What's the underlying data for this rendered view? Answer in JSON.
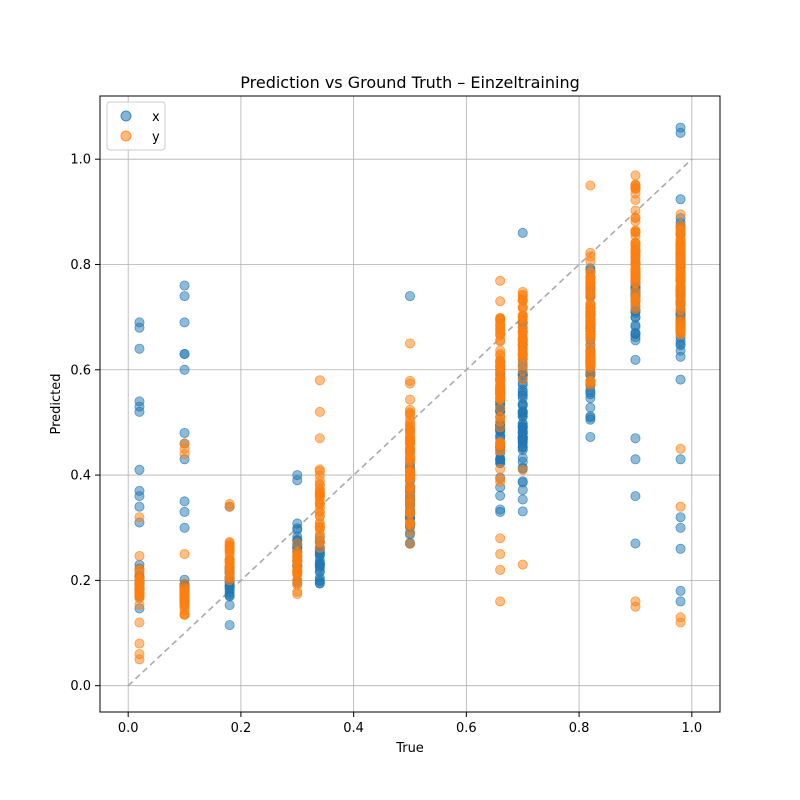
{
  "chart_data": {
    "type": "scatter",
    "title": "Prediction vs Ground Truth – Einzeltraining",
    "xlabel": "True",
    "ylabel": "Predicted",
    "xlim": [
      -0.05,
      1.05
    ],
    "ylim": [
      -0.05,
      1.12
    ],
    "xticks": [
      "0.0",
      "0.2",
      "0.4",
      "0.6",
      "0.8",
      "1.0"
    ],
    "yticks": [
      "0.0",
      "0.2",
      "0.4",
      "0.6",
      "0.8",
      "1.0"
    ],
    "grid": true,
    "legend_position": "top-left",
    "reference_line": {
      "style": "dashed",
      "color": "#aaaaaa",
      "from": [
        0,
        0
      ],
      "to": [
        1,
        1
      ]
    },
    "series": [
      {
        "name": "x",
        "color": "#1f77b4",
        "clusters": [
          {
            "x": 0.02,
            "ymin": 0.12,
            "ymax": 0.26,
            "outliers": [
              0.31,
              0.34,
              0.36,
              0.37,
              0.41,
              0.52,
              0.53,
              0.54,
              0.64,
              0.68,
              0.69
            ]
          },
          {
            "x": 0.1,
            "ymin": 0.14,
            "ymax": 0.21,
            "outliers": [
              0.3,
              0.33,
              0.35,
              0.43,
              0.46,
              0.48,
              0.6,
              0.63,
              0.63,
              0.69,
              0.74,
              0.76
            ]
          },
          {
            "x": 0.18,
            "ymin": 0.12,
            "ymax": 0.28,
            "outliers": [
              0.115,
              0.34
            ]
          },
          {
            "x": 0.3,
            "ymin": 0.17,
            "ymax": 0.33,
            "outliers": [
              0.39,
              0.4
            ]
          },
          {
            "x": 0.34,
            "ymin": 0.18,
            "ymax": 0.3,
            "outliers": []
          },
          {
            "x": 0.5,
            "ymin": 0.22,
            "ymax": 0.5,
            "outliers": [
              0.74
            ]
          },
          {
            "x": 0.66,
            "ymin": 0.3,
            "ymax": 0.65,
            "outliers": [
              0.33
            ]
          },
          {
            "x": 0.7,
            "ymin": 0.32,
            "ymax": 0.74,
            "outliers": [
              0.48,
              0.86
            ]
          },
          {
            "x": 0.82,
            "ymin": 0.42,
            "ymax": 0.86,
            "outliers": []
          },
          {
            "x": 0.9,
            "ymin": 0.6,
            "ymax": 0.87,
            "outliers": [
              0.27,
              0.36,
              0.43,
              0.47
            ]
          },
          {
            "x": 0.98,
            "ymin": 0.54,
            "ymax": 0.97,
            "outliers": [
              0.16,
              0.18,
              0.26,
              0.3,
              0.32,
              0.43,
              1.05,
              1.06
            ]
          }
        ]
      },
      {
        "name": "y",
        "color": "#ff7f0e",
        "clusters": [
          {
            "x": 0.02,
            "ymin": 0.11,
            "ymax": 0.26,
            "outliers": [
              0.05,
              0.06,
              0.08,
              0.32
            ]
          },
          {
            "x": 0.1,
            "ymin": 0.12,
            "ymax": 0.22,
            "outliers": [
              0.25,
              0.44,
              0.45,
              0.46
            ]
          },
          {
            "x": 0.18,
            "ymin": 0.17,
            "ymax": 0.3,
            "outliers": [
              0.34,
              0.345
            ]
          },
          {
            "x": 0.3,
            "ymin": 0.15,
            "ymax": 0.3,
            "outliers": []
          },
          {
            "x": 0.34,
            "ymin": 0.23,
            "ymax": 0.45,
            "outliers": [
              0.47,
              0.52,
              0.58
            ]
          },
          {
            "x": 0.5,
            "ymin": 0.23,
            "ymax": 0.63,
            "outliers": [
              0.65
            ]
          },
          {
            "x": 0.66,
            "ymin": 0.35,
            "ymax": 0.8,
            "outliers": [
              0.16,
              0.22,
              0.25,
              0.28
            ]
          },
          {
            "x": 0.7,
            "ymin": 0.53,
            "ymax": 0.8,
            "outliers": [
              0.23,
              0.41
            ]
          },
          {
            "x": 0.82,
            "ymin": 0.47,
            "ymax": 0.88,
            "outliers": [
              0.95
            ]
          },
          {
            "x": 0.9,
            "ymin": 0.62,
            "ymax": 1.0,
            "outliers": [
              0.15,
              0.16
            ]
          },
          {
            "x": 0.98,
            "ymin": 0.58,
            "ymax": 0.98,
            "outliers": [
              0.12,
              0.13,
              0.34,
              0.45
            ]
          }
        ]
      }
    ]
  }
}
